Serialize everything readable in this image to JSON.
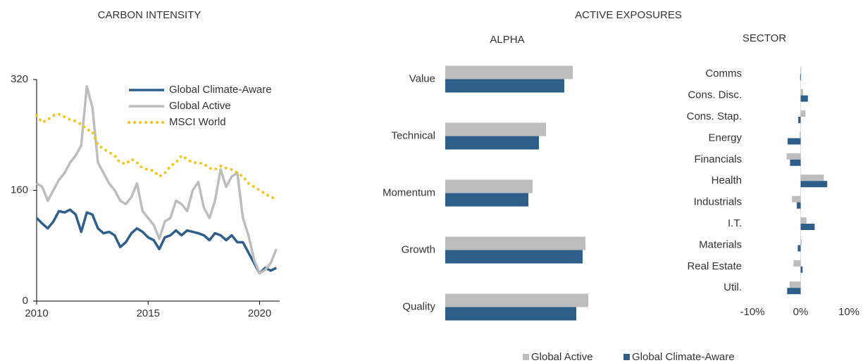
{
  "heading": "ACTIVE EXPOSURES",
  "chart_data": [
    {
      "type": "line",
      "title": "CARBON INTENSITY",
      "x": [
        2010,
        2010.25,
        2010.5,
        2010.75,
        2011,
        2011.25,
        2011.5,
        2011.75,
        2012,
        2012.25,
        2012.5,
        2012.75,
        2013,
        2013.25,
        2013.5,
        2013.75,
        2014,
        2014.25,
        2014.5,
        2014.75,
        2015,
        2015.25,
        2015.5,
        2015.75,
        2016,
        2016.25,
        2016.5,
        2016.75,
        2017,
        2017.25,
        2017.5,
        2017.75,
        2018,
        2018.25,
        2018.5,
        2018.75,
        2019,
        2019.25,
        2019.5,
        2019.75,
        2020,
        2020.25,
        2020.5,
        2020.75
      ],
      "series": [
        {
          "name": "Global Climate-Aware",
          "color": "#2e5f8a",
          "style": "solid",
          "values": [
            120,
            112,
            105,
            115,
            130,
            128,
            132,
            125,
            100,
            128,
            125,
            105,
            98,
            100,
            95,
            78,
            85,
            98,
            105,
            100,
            92,
            88,
            75,
            92,
            95,
            102,
            95,
            102,
            100,
            98,
            95,
            88,
            98,
            95,
            88,
            95,
            85,
            85,
            70,
            55,
            40,
            48,
            44,
            48
          ]
        },
        {
          "name": "Global Active",
          "color": "#bdbdbd",
          "style": "solid",
          "values": [
            170,
            165,
            145,
            160,
            175,
            185,
            200,
            210,
            225,
            310,
            280,
            200,
            185,
            170,
            160,
            145,
            140,
            150,
            170,
            130,
            120,
            110,
            90,
            115,
            120,
            145,
            140,
            130,
            160,
            172,
            135,
            120,
            145,
            190,
            165,
            180,
            185,
            120,
            95,
            60,
            40,
            45,
            55,
            75
          ]
        },
        {
          "name": "MSCI World",
          "color": "#f5c518",
          "style": "dotted",
          "values": [
            268,
            258,
            262,
            268,
            270,
            266,
            262,
            260,
            255,
            248,
            245,
            225,
            220,
            215,
            210,
            200,
            198,
            205,
            200,
            192,
            190,
            188,
            180,
            185,
            195,
            200,
            210,
            205,
            200,
            200,
            198,
            192,
            190,
            195,
            192,
            190,
            185,
            180,
            170,
            165,
            160,
            155,
            150,
            148
          ]
        }
      ],
      "xlim": [
        2010,
        2020.9
      ],
      "xticks": [
        2010,
        2015,
        2020
      ],
      "ylim": [
        0,
        320
      ],
      "yticks": [
        0,
        160,
        320
      ]
    },
    {
      "type": "hbar",
      "title": "ALPHA",
      "categories": [
        "Value",
        "Technical",
        "Momentum",
        "Growth",
        "Quality"
      ],
      "series": [
        {
          "name": "Global Active",
          "color": "#bdbdbd",
          "values": [
            181,
            143,
            124,
            199,
            203
          ]
        },
        {
          "name": "Global Climate-Aware",
          "color": "#2e5f8a",
          "values": [
            169,
            133,
            118,
            195,
            186
          ]
        }
      ],
      "xlim": [
        0,
        210
      ]
    },
    {
      "type": "hbar",
      "title": "SECTOR",
      "categories": [
        "Comms",
        "Cons. Disc.",
        "Cons. Stap.",
        "Energy",
        "Financials",
        "Health",
        "Industrials",
        "I.T.",
        "Materials",
        "Real Estate",
        "Util."
      ],
      "series": [
        {
          "name": "Global Active",
          "color": "#bdbdbd",
          "values": [
            0.1,
            0.5,
            1.0,
            -0.2,
            -2.9,
            4.8,
            -1.8,
            1.2,
            0.2,
            -1.5,
            -2.3
          ]
        },
        {
          "name": "Global Climate-Aware",
          "color": "#2e5f8a",
          "values": [
            -0.1,
            1.5,
            -0.5,
            -2.7,
            -2.2,
            5.5,
            -0.8,
            2.9,
            -0.6,
            0.4,
            -2.8
          ]
        }
      ],
      "xlim": [
        -10,
        10
      ],
      "xticks": [
        {
          "value": -10,
          "label": "-10%"
        },
        {
          "value": 0,
          "label": "0%"
        },
        {
          "value": 10,
          "label": "10%"
        }
      ]
    }
  ]
}
